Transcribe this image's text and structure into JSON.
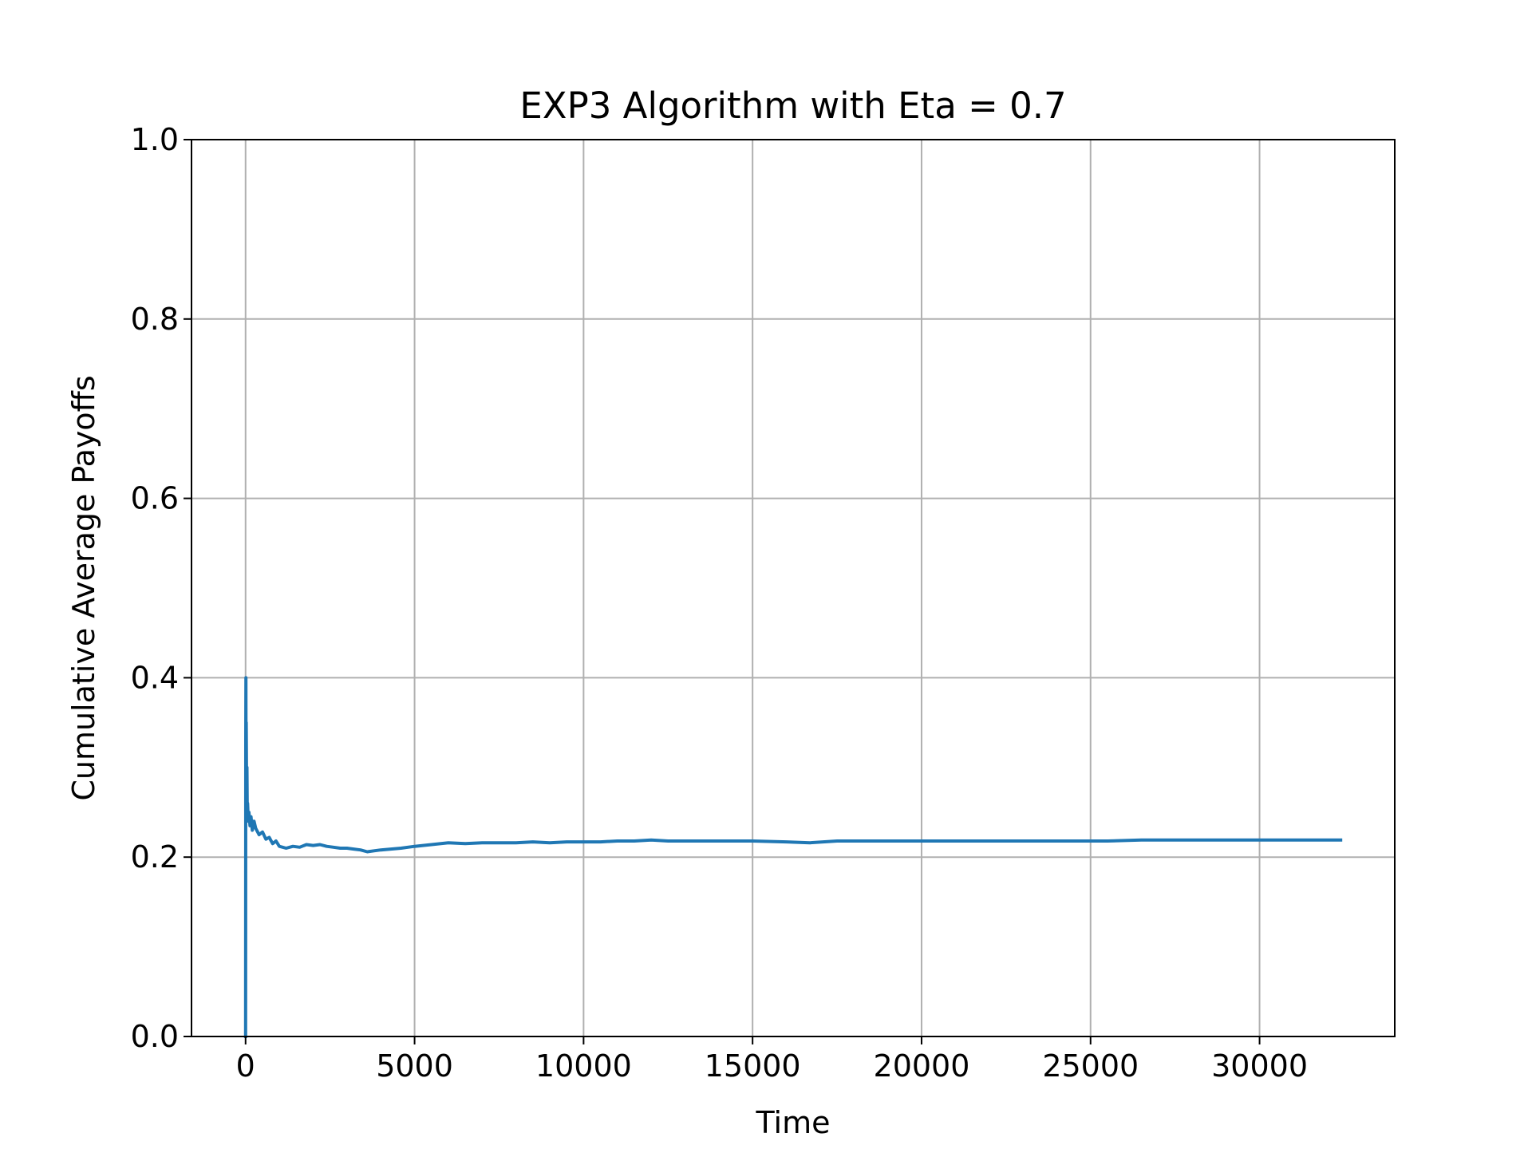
{
  "chart_data": {
    "type": "line",
    "title": "EXP3 Algorithm with Eta = 0.7",
    "xlabel": "Time",
    "ylabel": "Cumulative Average Payoffs",
    "xlim": [
      -1600,
      34000
    ],
    "ylim": [
      0.0,
      1.0
    ],
    "xticks": [
      0,
      5000,
      10000,
      15000,
      20000,
      25000,
      30000
    ],
    "xtick_labels": [
      "0",
      "5000",
      "10000",
      "15000",
      "20000",
      "25000",
      "30000"
    ],
    "yticks": [
      0.0,
      0.2,
      0.4,
      0.6,
      0.8,
      1.0
    ],
    "ytick_labels": [
      "0.0",
      "0.2",
      "0.4",
      "0.6",
      "0.8",
      "1.0"
    ],
    "grid": true,
    "series": [
      {
        "color": "#1f77b4",
        "x": [
          0,
          5,
          10,
          15,
          20,
          30,
          40,
          50,
          60,
          80,
          100,
          130,
          160,
          200,
          250,
          300,
          400,
          500,
          600,
          700,
          800,
          900,
          1000,
          1200,
          1400,
          1600,
          1800,
          2000,
          2200,
          2400,
          2600,
          2800,
          3000,
          3200,
          3400,
          3600,
          3800,
          4000,
          4300,
          4600,
          5000,
          5500,
          6000,
          6500,
          7000,
          7500,
          8000,
          8500,
          9000,
          9500,
          10000,
          10500,
          11000,
          11500,
          12000,
          12500,
          13000,
          14000,
          15000,
          16000,
          16700,
          17500,
          18500,
          19500,
          20500,
          21500,
          22500,
          23500,
          24500,
          25500,
          26500,
          27500,
          28500,
          29500,
          30500,
          31500,
          32400
        ],
        "y": [
          0.0,
          0.33,
          0.4,
          0.25,
          0.35,
          0.28,
          0.3,
          0.25,
          0.26,
          0.24,
          0.25,
          0.235,
          0.245,
          0.23,
          0.24,
          0.232,
          0.225,
          0.228,
          0.22,
          0.222,
          0.215,
          0.218,
          0.212,
          0.21,
          0.212,
          0.211,
          0.214,
          0.213,
          0.214,
          0.212,
          0.211,
          0.21,
          0.21,
          0.209,
          0.208,
          0.206,
          0.207,
          0.208,
          0.209,
          0.21,
          0.212,
          0.214,
          0.216,
          0.215,
          0.216,
          0.216,
          0.216,
          0.217,
          0.216,
          0.217,
          0.217,
          0.217,
          0.218,
          0.218,
          0.219,
          0.218,
          0.218,
          0.218,
          0.218,
          0.217,
          0.216,
          0.218,
          0.218,
          0.218,
          0.218,
          0.218,
          0.218,
          0.218,
          0.218,
          0.218,
          0.219,
          0.219,
          0.219,
          0.219,
          0.219,
          0.219,
          0.219
        ]
      }
    ]
  }
}
